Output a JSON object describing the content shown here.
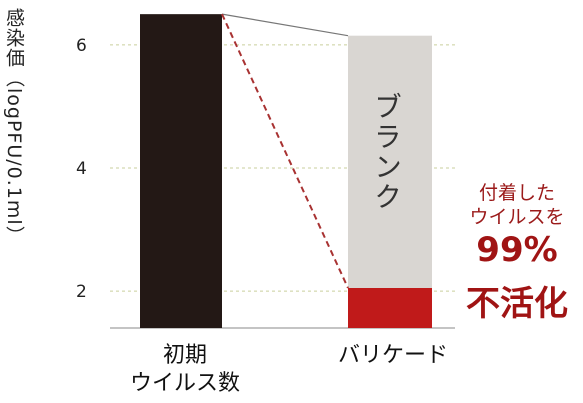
{
  "chart_data": {
    "type": "bar",
    "ylabel": "感染価（logPFU/0.1ml）",
    "ylim": [
      1.4,
      6.6
    ],
    "yticks": [
      2,
      4,
      6
    ],
    "grid": true,
    "categories": [
      "初期\nウイルス数",
      "バリケード"
    ],
    "bars": [
      {
        "category": "初期\nウイルス数",
        "value": 6.5,
        "color": "#231815"
      },
      {
        "category": "バリケード",
        "stack": [
          {
            "label": "",
            "value": 2.05,
            "color": "#c01a1a"
          },
          {
            "label": "ブランク",
            "value": 6.15,
            "color": "#d9d6d2"
          }
        ]
      }
    ],
    "annotation": {
      "line1": "付着した",
      "line2": "ウイルスを",
      "percent": "99%",
      "action": "不活化"
    }
  },
  "colors": {
    "initial_bar": "#231815",
    "blank_bar": "#d9d6d2",
    "barricade_bar": "#c01a1a",
    "dashed_line": "#a83232",
    "accent": "#a01414"
  }
}
